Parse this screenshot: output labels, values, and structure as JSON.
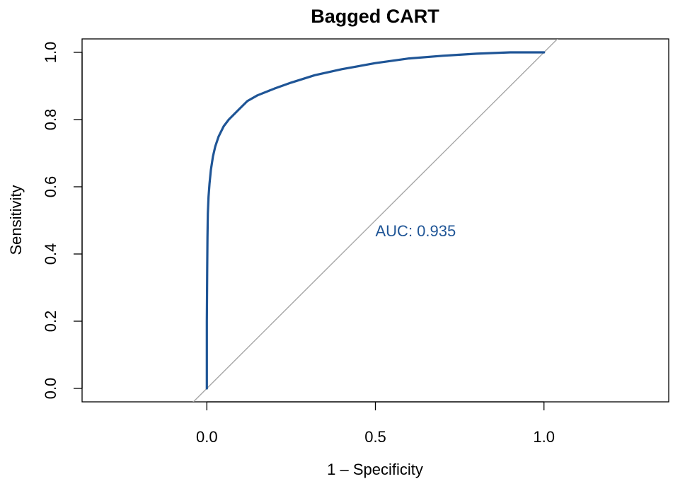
{
  "chart_data": {
    "type": "line",
    "title": "Bagged CART",
    "xlabel": "1 – Specificity",
    "ylabel": "Sensitivity",
    "xlim": [
      -0.37,
      1.37
    ],
    "ylim": [
      -0.04,
      1.04
    ],
    "x_ticks": [
      0.0,
      0.5,
      1.0
    ],
    "x_tick_labels": [
      "0.0",
      "0.5",
      "1.0"
    ],
    "y_ticks": [
      0.0,
      0.2,
      0.4,
      0.6,
      0.8,
      1.0
    ],
    "y_tick_labels": [
      "0.0",
      "0.2",
      "0.4",
      "0.6",
      "0.8",
      "1.0"
    ],
    "grid": false,
    "series": [
      {
        "color": "#1f5596",
        "x": [
          0.0,
          0.0,
          0.001,
          0.002,
          0.003,
          0.005,
          0.008,
          0.012,
          0.018,
          0.025,
          0.035,
          0.05,
          0.065,
          0.08,
          0.1,
          0.12,
          0.15,
          0.2,
          0.25,
          0.32,
          0.4,
          0.5,
          0.6,
          0.7,
          0.8,
          0.9,
          1.0
        ],
        "y": [
          0.0,
          0.2,
          0.35,
          0.45,
          0.52,
          0.57,
          0.61,
          0.65,
          0.69,
          0.72,
          0.75,
          0.78,
          0.8,
          0.815,
          0.835,
          0.855,
          0.872,
          0.892,
          0.91,
          0.932,
          0.95,
          0.968,
          0.982,
          0.99,
          0.996,
          1.0,
          1.0
        ]
      }
    ],
    "reference_line": {
      "color": "#a6a6a6",
      "slope": 1,
      "intercept": 0
    },
    "annotation": {
      "text": "AUC: 0.935",
      "x": 0.5,
      "y": 0.47,
      "color": "#1f5596"
    }
  }
}
